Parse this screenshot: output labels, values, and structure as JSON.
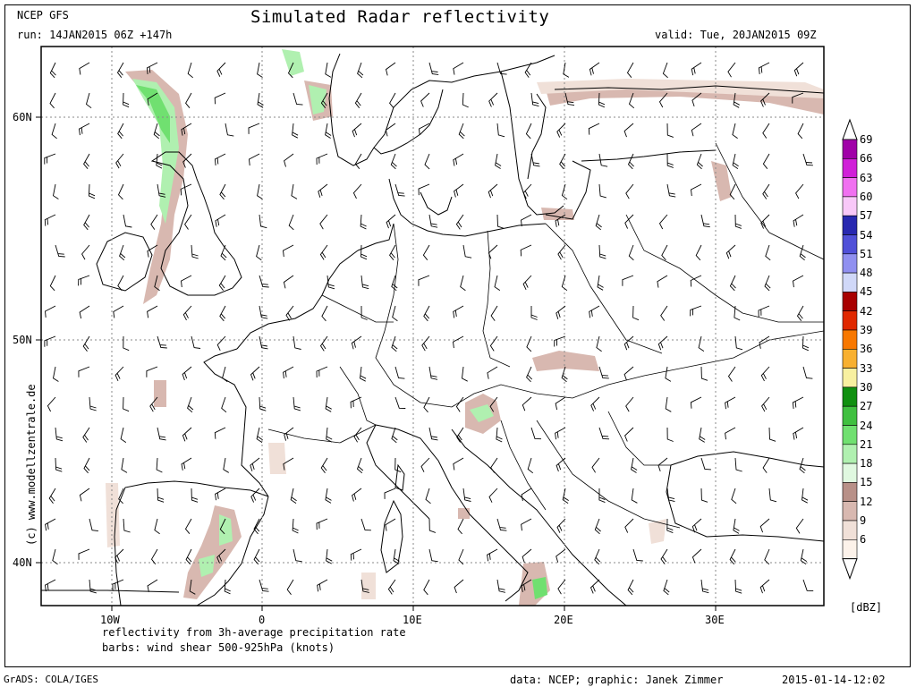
{
  "header": {
    "model": "NCEP GFS",
    "run": "run: 14JAN2015 06Z +147h",
    "title": "Simulated Radar reflectivity",
    "valid": "valid: Tue, 20JAN2015 09Z"
  },
  "side_credit": "(c) www.modellzentrale.de",
  "axes": {
    "lon_labels": [
      "10W",
      "0",
      "10E",
      "20E",
      "30E"
    ],
    "lat_labels": [
      "60N",
      "50N",
      "40N"
    ]
  },
  "notes": {
    "line1": "reflectivity from 3h-average precipitation rate",
    "line2": "barbs: wind shear 500-925hPa (knots)"
  },
  "footer": {
    "left": "GrADS: COLA/IGES",
    "center": "data: NCEP; graphic: Janek Zimmer",
    "right": "2015-01-14-12:02"
  },
  "colorbar": {
    "unit": "[dBZ]",
    "levels": [
      {
        "value": "69",
        "color": "#a000a8"
      },
      {
        "value": "66",
        "color": "#d020d8"
      },
      {
        "value": "63",
        "color": "#f070f0"
      },
      {
        "value": "60",
        "color": "#f8c8f8"
      },
      {
        "value": "57",
        "color": "#2828b0"
      },
      {
        "value": "54",
        "color": "#5050d8"
      },
      {
        "value": "51",
        "color": "#9090f0"
      },
      {
        "value": "48",
        "color": "#d0d8f8"
      },
      {
        "value": "45",
        "color": "#a80000"
      },
      {
        "value": "42",
        "color": "#e02800"
      },
      {
        "value": "39",
        "color": "#f87800"
      },
      {
        "value": "36",
        "color": "#f8b030"
      },
      {
        "value": "33",
        "color": "#f8f0a0"
      },
      {
        "value": "30",
        "color": "#109010"
      },
      {
        "value": "27",
        "color": "#40c040"
      },
      {
        "value": "24",
        "color": "#70e070"
      },
      {
        "value": "21",
        "color": "#b0f0b0"
      },
      {
        "value": "18",
        "color": "#e0f8e0"
      },
      {
        "value": "15",
        "color": "#b89088"
      },
      {
        "value": "12",
        "color": "#d8b8b0"
      },
      {
        "value": "9",
        "color": "#f0e0d8"
      },
      {
        "value": "6",
        "color": "#fcf2ea"
      }
    ]
  }
}
